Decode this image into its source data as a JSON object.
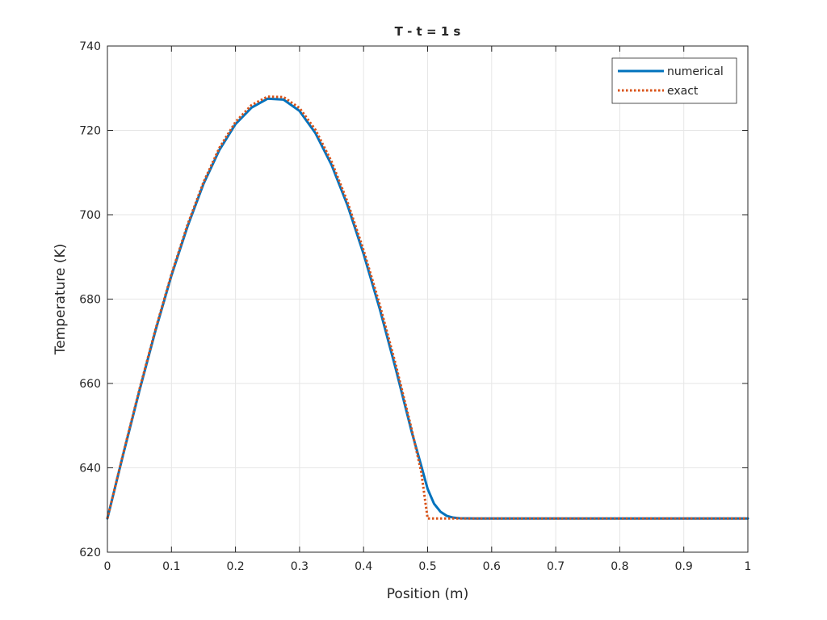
{
  "chart_data": {
    "type": "line",
    "title": "T - t = 1 s",
    "xlabel": "Position (m)",
    "ylabel": "Temperature (K)",
    "xlim": [
      0,
      1
    ],
    "ylim": [
      620,
      740
    ],
    "xticks": [
      0,
      0.1,
      0.2,
      0.3,
      0.4,
      0.5,
      0.6,
      0.7,
      0.8,
      0.9,
      1
    ],
    "xtick_labels": [
      "0",
      "0.1",
      "0.2",
      "0.3",
      "0.4",
      "0.5",
      "0.6",
      "0.7",
      "0.8",
      "0.9",
      "1"
    ],
    "yticks": [
      620,
      640,
      660,
      680,
      700,
      720,
      740
    ],
    "ytick_labels": [
      "620",
      "640",
      "660",
      "680",
      "700",
      "720",
      "740"
    ],
    "grid": true,
    "legend_position": "top-right",
    "series": [
      {
        "name": "numerical",
        "style": "solid",
        "color": "#0072BD",
        "x": [
          0,
          0.025,
          0.05,
          0.075,
          0.1,
          0.125,
          0.15,
          0.175,
          0.2,
          0.225,
          0.25,
          0.275,
          0.3,
          0.325,
          0.35,
          0.375,
          0.4,
          0.425,
          0.45,
          0.475,
          0.49,
          0.5,
          0.51,
          0.52,
          0.53,
          0.54,
          0.55,
          0.575,
          0.6,
          0.7,
          0.8,
          0.9,
          1
        ],
        "y": [
          628,
          643.4,
          658.3,
          672.5,
          685.6,
          697.2,
          707.3,
          715.4,
          721.5,
          725.4,
          727.5,
          727.3,
          724.6,
          719.3,
          711.8,
          702.2,
          690.7,
          677.8,
          663.6,
          648.6,
          640.5,
          635.0,
          631.5,
          629.6,
          628.6,
          628.2,
          628.05,
          628.0,
          628.0,
          628.0,
          628.0,
          628.0,
          628.0
        ]
      },
      {
        "name": "exact",
        "style": "dotted",
        "color": "#D95319",
        "x": [
          0,
          0.025,
          0.05,
          0.075,
          0.1,
          0.125,
          0.15,
          0.175,
          0.2,
          0.225,
          0.25,
          0.275,
          0.3,
          0.325,
          0.35,
          0.375,
          0.4,
          0.425,
          0.45,
          0.475,
          0.49,
          0.5,
          0.51,
          0.52,
          0.53,
          0.54,
          0.55,
          0.575,
          0.6,
          0.7,
          0.8,
          0.9,
          1
        ],
        "y": [
          628,
          643.6,
          658.6,
          672.8,
          685.9,
          697.6,
          707.7,
          715.9,
          722.0,
          726.0,
          728.0,
          727.9,
          725.3,
          720.1,
          712.6,
          703.0,
          691.6,
          678.8,
          664.6,
          649.2,
          639.0,
          628.0,
          628.0,
          628.0,
          628.0,
          628.0,
          628.0,
          628.0,
          628.0,
          628.0,
          628.0,
          628.0,
          628.0
        ]
      }
    ]
  },
  "colors": {
    "axes": "#262626",
    "grid": "#e6e6e6",
    "numerical": "#0072BD",
    "exact": "#D95319"
  }
}
